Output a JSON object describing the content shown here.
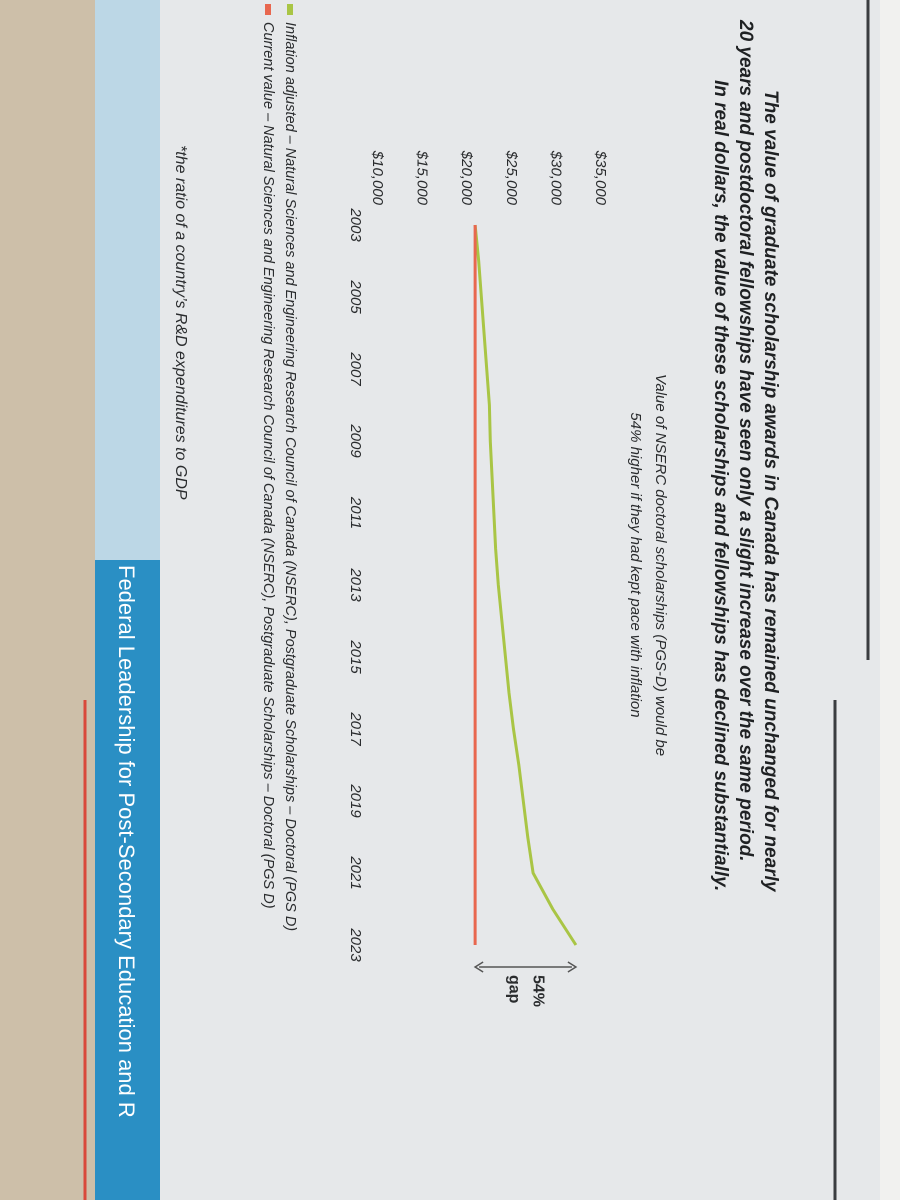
{
  "footnote": "*the ratio of a country’s R&D expenditures to GDP",
  "banner": "Federal Leadership for Post-Secondary Education and R",
  "chart_data": {
    "type": "line",
    "title": [
      "The value of graduate scholarship awards in Canada has remained unchanged for nearly",
      "20 years and postdoctoral fellowships have seen only a slight increase over the same period.",
      "In real dollars, the value of these scholarships and fellowships has declined substantially."
    ],
    "subtitle": [
      "Value of NSERC doctoral scholarships (PGS-D) would be",
      "54% higher if they had kept pace with inflation"
    ],
    "annotation": [
      "54%",
      "gap"
    ],
    "x": [
      2003,
      2004,
      2005,
      2006,
      2007,
      2008,
      2009,
      2010,
      2011,
      2012,
      2013,
      2014,
      2015,
      2016,
      2017,
      2018,
      2019,
      2020,
      2021,
      2022,
      2023
    ],
    "xlim": [
      2003,
      2023
    ],
    "xticks": [
      2003,
      2005,
      2007,
      2009,
      2011,
      2013,
      2015,
      2017,
      2019,
      2021,
      2023
    ],
    "ylim": [
      10000,
      35000
    ],
    "yticks": [
      {
        "value": 10000,
        "label": "$10,000"
      },
      {
        "value": 15000,
        "label": "$15,000"
      },
      {
        "value": 20000,
        "label": "$20,000"
      },
      {
        "value": 25000,
        "label": "$25,000"
      },
      {
        "value": 30000,
        "label": "$30,000"
      },
      {
        "value": 35000,
        "label": "$35,000"
      }
    ],
    "series": [
      {
        "name": "Inflation adjusted – Natural Sciences and Engineering Research Council of Canada (NSERC), Postgraduate Scholarships – Doctoral (PGS D)",
        "color": "#a9c545",
        "values": [
          21000,
          21400,
          21700,
          22000,
          22300,
          22600,
          22700,
          22900,
          23100,
          23300,
          23600,
          24000,
          24400,
          24800,
          25300,
          25900,
          26400,
          26900,
          27500,
          29700,
          32300
        ]
      },
      {
        "name": "Current value – Natural Sciences and Engineering Research Council of Canada (NSERC), Postgraduate Scholarships – Doctoral (PGS D)",
        "color": "#e8674f",
        "values": [
          21000,
          21000,
          21000,
          21000,
          21000,
          21000,
          21000,
          21000,
          21000,
          21000,
          21000,
          21000,
          21000,
          21000,
          21000,
          21000,
          21000,
          21000,
          21000,
          21000,
          21000
        ]
      }
    ]
  }
}
